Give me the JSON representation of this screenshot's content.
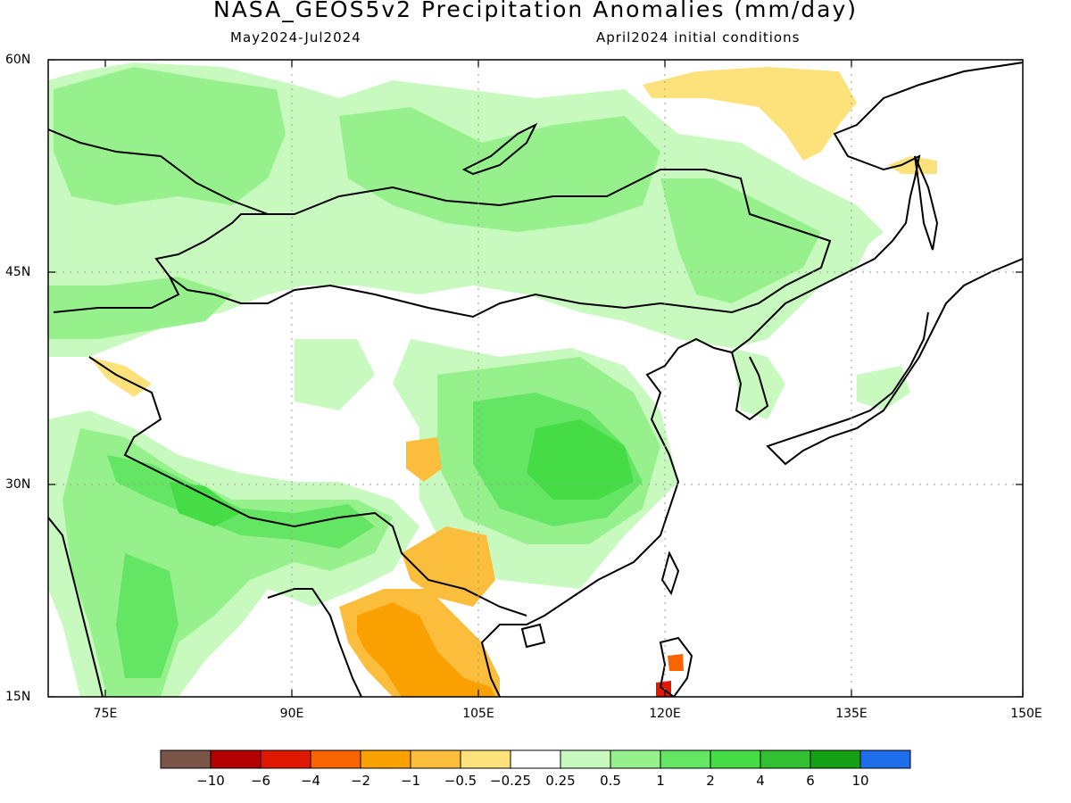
{
  "title": "NASA_GEOS5v2 Precipitation Anomalies (mm/day)",
  "subtitle_left": "May2024-Jul2024",
  "subtitle_right": "April2024 initial conditions",
  "y_axis_labels": [
    "60N",
    "45N",
    "30N",
    "15N"
  ],
  "x_axis_labels": [
    "75E",
    "90E",
    "105E",
    "120E",
    "135E",
    "150E"
  ],
  "colorbar": {
    "labels": [
      "-10",
      "-6",
      "-4",
      "-2",
      "-1",
      "-0.5",
      "-0.25",
      "0.25",
      "0.5",
      "1",
      "2",
      "4",
      "6",
      "10"
    ],
    "colors": [
      "#7b5548",
      "#b40000",
      "#e01800",
      "#f86400",
      "#faa000",
      "#fbbe3c",
      "#fde27c",
      "#ffffff",
      "#c8fac0",
      "#96f08c",
      "#64e664",
      "#46dc46",
      "#32c032",
      "#14a014",
      "#1e6eeb"
    ]
  },
  "map": {
    "region": "East Asia",
    "lon_range": [
      70,
      150
    ],
    "lat_range": [
      15,
      60
    ],
    "anomaly_colors": {
      "wet_light": "#c8fac0",
      "wet_mid": "#96f08c",
      "wet_strong": "#64e664",
      "wet_heavy": "#46dc46",
      "dry_light": "#fde27c",
      "dry_mid": "#fbbe3c",
      "dry_strong": "#faa000",
      "dry_heavy": "#f86400",
      "dry_extreme": "#e01800"
    }
  }
}
